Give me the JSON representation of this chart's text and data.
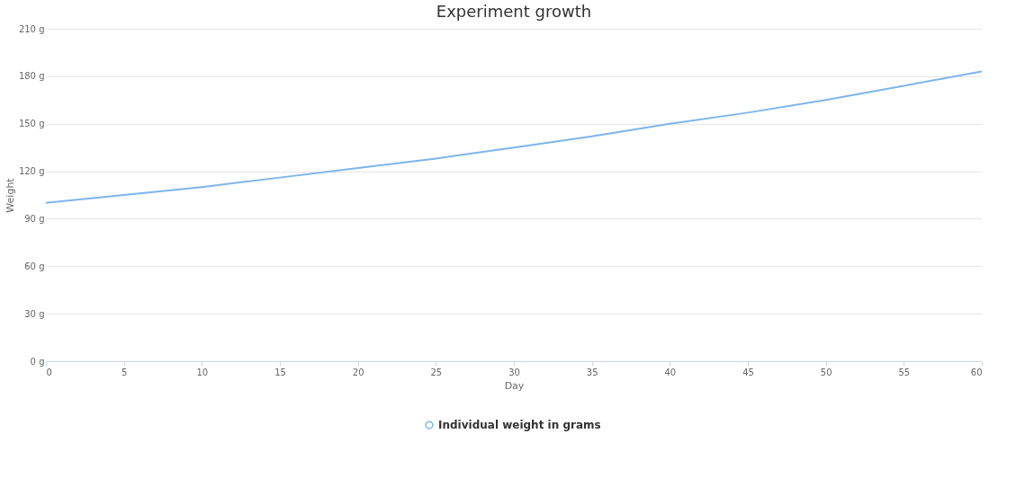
{
  "chart_data": {
    "type": "line",
    "title": "Experiment growth",
    "xlabel": "Day",
    "ylabel": "Weight",
    "x": [
      0,
      5,
      10,
      15,
      20,
      25,
      30,
      35,
      40,
      45,
      50,
      55,
      60
    ],
    "series": [
      {
        "name": "Individual weight in grams",
        "color": "#7cb5ec",
        "values": [
          100,
          105,
          110,
          116,
          122,
          128,
          135,
          142,
          150,
          157,
          165,
          174,
          183
        ]
      }
    ],
    "xlim": [
      0,
      60
    ],
    "xticks": [
      0,
      5,
      10,
      15,
      20,
      25,
      30,
      35,
      40,
      45,
      50,
      55,
      60
    ],
    "ylim": [
      0,
      210
    ],
    "yticks": [
      {
        "value": 0,
        "label": "0 g"
      },
      {
        "value": 30,
        "label": "30 g"
      },
      {
        "value": 60,
        "label": "60 g"
      },
      {
        "value": 90,
        "label": "90 g"
      },
      {
        "value": 120,
        "label": "120 g"
      },
      {
        "value": 150,
        "label": "150 g"
      },
      {
        "value": 180,
        "label": "180 g"
      },
      {
        "value": 210,
        "label": "210 g"
      }
    ],
    "grid": "y",
    "legend": "bottom",
    "marker": "none",
    "line_style": "solid"
  }
}
